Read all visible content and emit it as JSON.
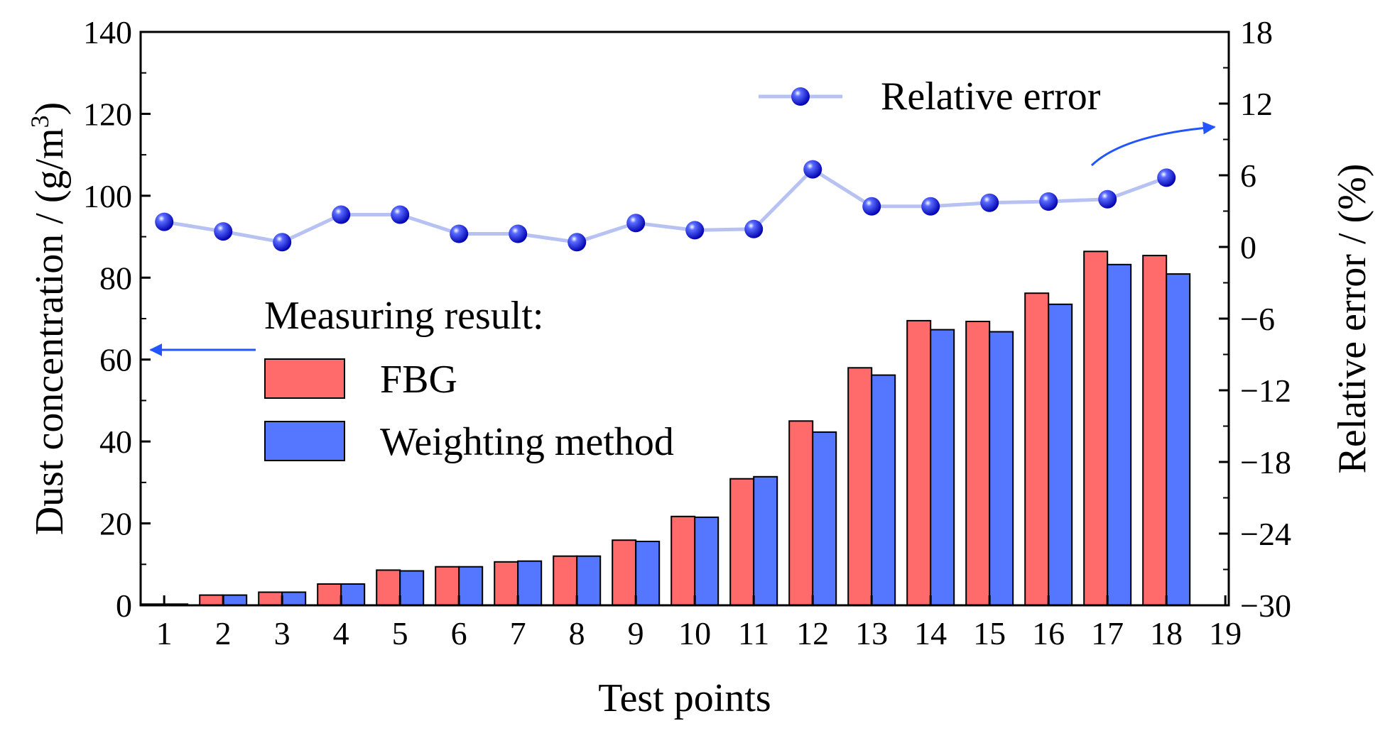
{
  "chart_data": {
    "type": "bar",
    "xlabel": "Test points",
    "ylabel": "Dust concentration / (g/m",
    "ylabel_sup": "3",
    "ylabel_end": ")",
    "y2label": "Relative error / (%)",
    "ylim": [
      0,
      140
    ],
    "y2lim": [
      -30,
      18
    ],
    "yticks": [
      "0",
      "20",
      "40",
      "60",
      "80",
      "100",
      "120",
      "140"
    ],
    "y2ticks": [
      "−30",
      "−24",
      "−18",
      "−12",
      "−6",
      "0",
      "6",
      "12",
      "18"
    ],
    "xticks": [
      "1",
      "2",
      "3",
      "4",
      "5",
      "6",
      "7",
      "8",
      "9",
      "10",
      "11",
      "12",
      "13",
      "14",
      "15",
      "16",
      "17",
      "18",
      "19"
    ],
    "categories": [
      1,
      2,
      3,
      4,
      5,
      6,
      7,
      8,
      9,
      10,
      11,
      12,
      13,
      14,
      15,
      16,
      17,
      18
    ],
    "series": [
      {
        "name": "FBG",
        "kind": "bar",
        "color": "#ff6b6b",
        "values": [
          0.3,
          2.5,
          3.2,
          5.2,
          8.6,
          9.4,
          10.6,
          12.0,
          15.9,
          21.7,
          30.9,
          45.0,
          58.0,
          69.5,
          69.3,
          76.2,
          86.4,
          85.4
        ]
      },
      {
        "name": "Weighting method",
        "kind": "bar",
        "color": "#5577ff",
        "values": [
          0.3,
          2.5,
          3.2,
          5.2,
          8.4,
          9.4,
          10.8,
          12.0,
          15.6,
          21.5,
          31.4,
          42.3,
          56.2,
          67.3,
          66.8,
          73.5,
          83.2,
          80.9
        ]
      },
      {
        "name": "Relative error",
        "kind": "line",
        "axis": "right",
        "color": "#1010dd",
        "line_color": "#b7c2f2",
        "values": [
          2.1,
          1.3,
          0.4,
          2.7,
          2.7,
          1.1,
          1.1,
          0.4,
          2.0,
          1.4,
          1.5,
          6.5,
          3.4,
          3.4,
          3.7,
          3.8,
          4.0,
          5.8
        ]
      }
    ],
    "legend_title": "Measuring result:",
    "legend_placement": "center-left",
    "grid": false
  }
}
